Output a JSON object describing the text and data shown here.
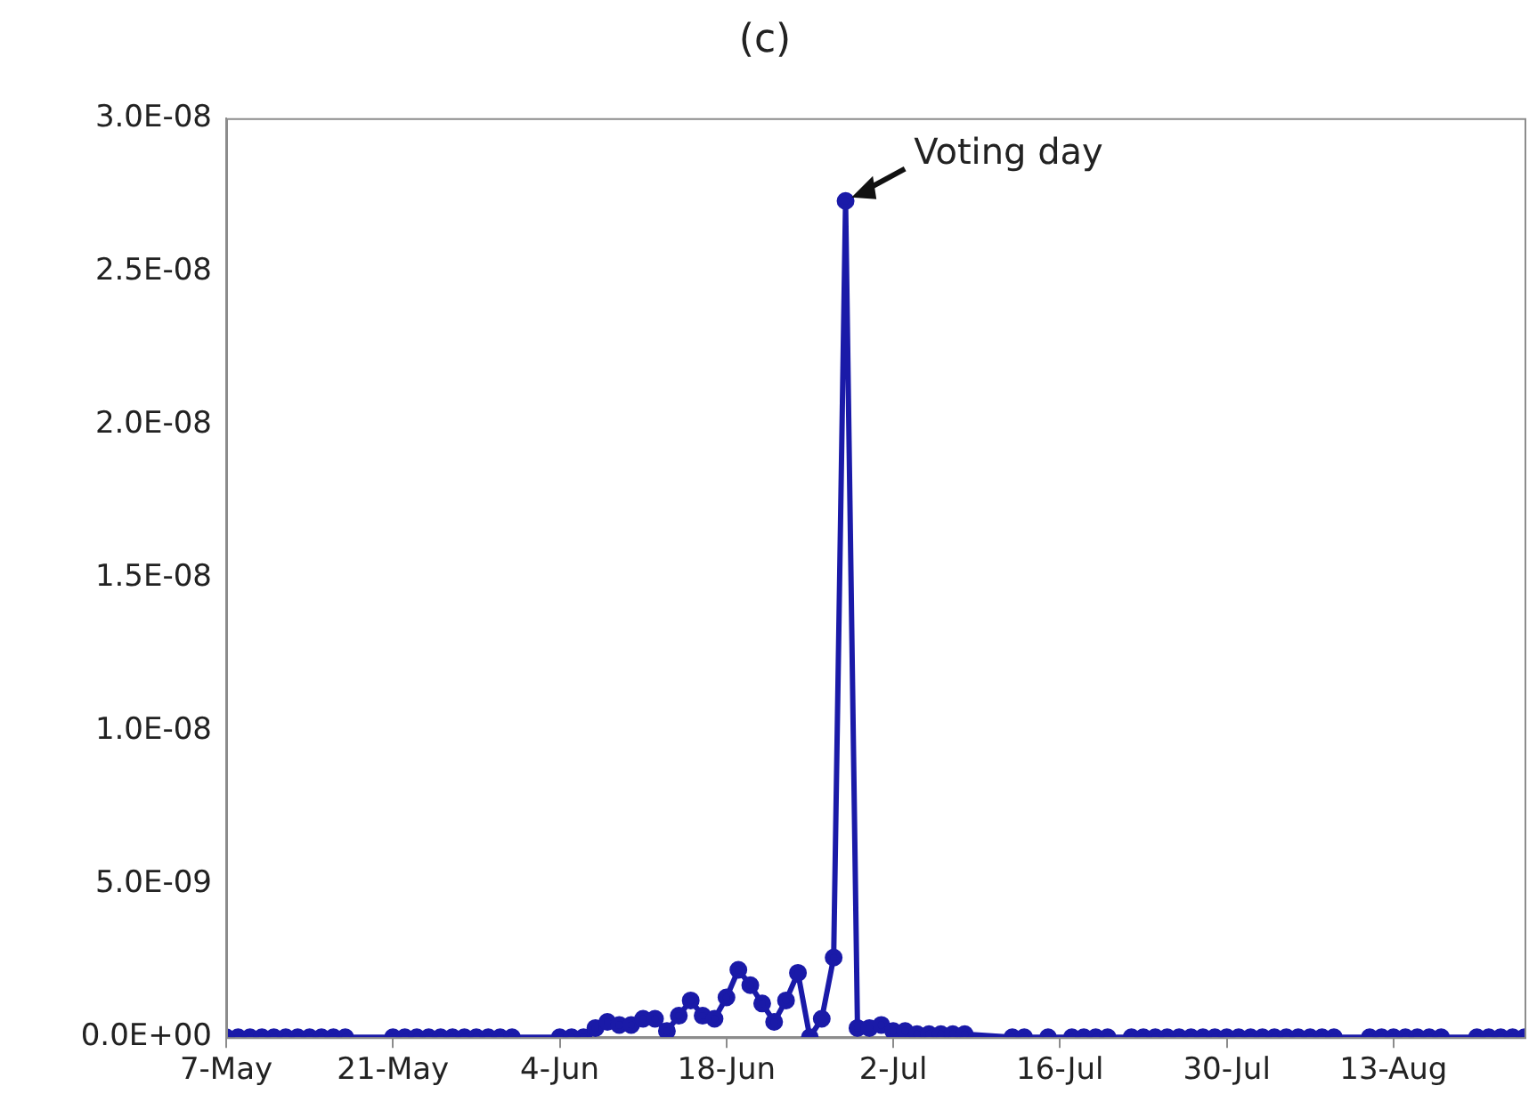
{
  "chart_data": {
    "type": "line",
    "title": "(c)",
    "x": [
      "--05-07",
      "--05-08",
      "--05-09",
      "--05-10",
      "--05-11",
      "--05-12",
      "--05-13",
      "--05-14",
      "--05-15",
      "--05-16",
      "--05-17",
      "--05-21",
      "--05-22",
      "--05-23",
      "--05-24",
      "--05-25",
      "--05-26",
      "--05-27",
      "--05-28",
      "--05-29",
      "--05-30",
      "--05-31",
      "--06-04",
      "--06-05",
      "--06-06",
      "--06-07",
      "--06-08",
      "--06-09",
      "--06-10",
      "--06-11",
      "--06-12",
      "--06-13",
      "--06-14",
      "--06-15",
      "--06-16",
      "--06-17",
      "--06-18",
      "--06-19",
      "--06-20",
      "--06-21",
      "--06-22",
      "--06-23",
      "--06-24",
      "--06-25",
      "--06-26",
      "--06-27",
      "--06-28",
      "--06-29",
      "--06-30",
      "--07-01",
      "--07-02",
      "--07-03",
      "--07-04",
      "--07-05",
      "--07-06",
      "--07-07",
      "--07-08",
      "--07-12",
      "--07-13",
      "--07-15",
      "--07-17",
      "--07-18",
      "--07-19",
      "--07-20",
      "--07-22",
      "--07-23",
      "--07-24",
      "--07-25",
      "--07-26",
      "--07-27",
      "--07-28",
      "--07-29",
      "--07-30",
      "--07-31",
      "--08-01",
      "--08-02",
      "--08-03",
      "--08-04",
      "--08-05",
      "--08-06",
      "--08-07",
      "--08-08",
      "--08-11",
      "--08-12",
      "--08-13",
      "--08-14",
      "--08-15",
      "--08-16",
      "--08-17",
      "--08-20",
      "--08-21",
      "--08-22",
      "--08-23",
      "--08-24"
    ],
    "series": [
      {
        "color": "#1a1aa8",
        "values": [
          0,
          0,
          0,
          0,
          0,
          0,
          0,
          0,
          0,
          0,
          0,
          0,
          0,
          0,
          0,
          0,
          0,
          0,
          0,
          0,
          0,
          0,
          0,
          0,
          0,
          3e-10,
          5e-10,
          4e-10,
          4e-10,
          6e-10,
          6e-10,
          2e-10,
          7e-10,
          1.2e-09,
          7e-10,
          6e-10,
          1.3e-09,
          2.2e-09,
          1.7e-09,
          1.1e-09,
          5e-10,
          1.2e-09,
          2.1e-09,
          0,
          6e-10,
          2.6e-09,
          2.73e-08,
          3e-10,
          3e-10,
          4e-10,
          2e-10,
          2e-10,
          1e-10,
          1e-10,
          1e-10,
          1e-10,
          1e-10,
          0,
          0,
          0,
          0,
          0,
          0,
          0,
          0,
          0,
          0,
          0,
          0,
          0,
          0,
          0,
          0,
          0,
          0,
          0,
          0,
          0,
          0,
          0,
          0,
          0,
          0,
          0,
          0,
          0,
          0,
          0,
          0,
          0,
          0,
          0,
          0,
          0
        ]
      }
    ],
    "xlim": [
      "--05-07",
      "--08-24"
    ],
    "xticks": [
      {
        "value": "--05-07",
        "label": "7-May"
      },
      {
        "value": "--05-21",
        "label": "21-May"
      },
      {
        "value": "--06-04",
        "label": "4-Jun"
      },
      {
        "value": "--06-18",
        "label": "18-Jun"
      },
      {
        "value": "--07-02",
        "label": "2-Jul"
      },
      {
        "value": "--07-16",
        "label": "16-Jul"
      },
      {
        "value": "--07-30",
        "label": "30-Jul"
      },
      {
        "value": "--08-13",
        "label": "13-Aug"
      }
    ],
    "ylim": [
      0,
      3e-08
    ],
    "yticks": [
      {
        "value": 0,
        "label": "0.0E+00"
      },
      {
        "value": 5e-09,
        "label": "5.0E-09"
      },
      {
        "value": 1e-08,
        "label": "1.0E-08"
      },
      {
        "value": 1.5e-08,
        "label": "1.5E-08"
      },
      {
        "value": 2e-08,
        "label": "2.0E-08"
      },
      {
        "value": 2.5e-08,
        "label": "2.5E-08"
      },
      {
        "value": 3e-08,
        "label": "3.0E-08"
      }
    ],
    "annotations": [
      {
        "text": "Voting day",
        "x": "--06-27",
        "y": 2.73e-08
      }
    ],
    "grid": false,
    "legend": false,
    "marker": "circle",
    "line_style": "solid"
  }
}
